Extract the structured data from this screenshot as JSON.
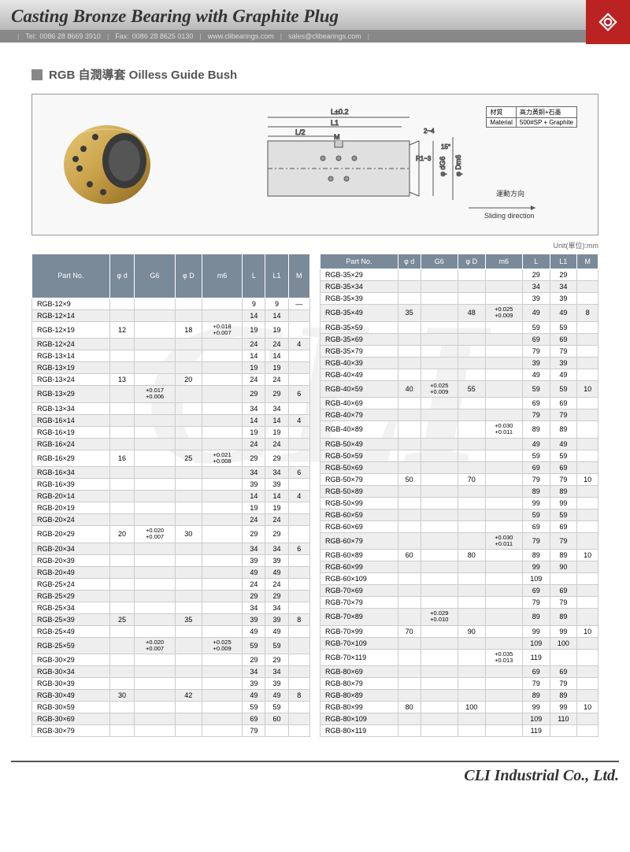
{
  "header": {
    "title": "Casting Bronze Bearing with Graphite Plug",
    "tel_label": "Tel:",
    "tel": "0086 28 8669 3910",
    "fax_label": "Fax:",
    "fax": "0086 28 8625 0130",
    "web": "www.clibearings.com",
    "email": "sales@clibearings.com"
  },
  "section_title": "RGB 自潤導套 Oilless Guide Bush",
  "material": {
    "label": "材質",
    "value_cn": "高力黃銅+石墨",
    "label_en": "Material",
    "value_en": "500#SP + Graphite"
  },
  "diagram_labels": {
    "L": "L±0.2",
    "L1": "L1",
    "Lhalf": "L/2",
    "M": "M",
    "chamfer": "2~4",
    "angle": "15°",
    "radius": "R1~3",
    "dg6": "φ dG6",
    "dm6": "φ Dm6",
    "dir_cn": "運動方向",
    "dir_en": "Sliding direction"
  },
  "unit_label": "Unit(單位):mm",
  "columns": [
    "Part No.",
    "φ d",
    "G6",
    "φ D",
    "m6",
    "L",
    "L1",
    "M"
  ],
  "left_rows": [
    {
      "pn": "RGB-12×9",
      "d": "",
      "g6": "",
      "D": "",
      "m6": "",
      "L": "9",
      "L1": "9",
      "M": "—"
    },
    {
      "pn": "RGB-12×14",
      "d": "",
      "g6": "",
      "D": "",
      "m6": "",
      "L": "14",
      "L1": "14",
      "M": ""
    },
    {
      "pn": "RGB-12×19",
      "d": "12",
      "g6": "",
      "D": "18",
      "m6": "+0.018\n+0.007",
      "L": "19",
      "L1": "19",
      "M": ""
    },
    {
      "pn": "RGB-12×24",
      "d": "",
      "g6": "",
      "D": "",
      "m6": "",
      "L": "24",
      "L1": "24",
      "M": "4"
    },
    {
      "pn": "RGB-13×14",
      "d": "",
      "g6": "",
      "D": "",
      "m6": "",
      "L": "14",
      "L1": "14",
      "M": ""
    },
    {
      "pn": "RGB-13×19",
      "d": "",
      "g6": "",
      "D": "",
      "m6": "",
      "L": "19",
      "L1": "19",
      "M": ""
    },
    {
      "pn": "RGB-13×24",
      "d": "13",
      "g6": "",
      "D": "20",
      "m6": "",
      "L": "24",
      "L1": "24",
      "M": ""
    },
    {
      "pn": "RGB-13×29",
      "d": "",
      "g6": "+0.017\n+0.006",
      "D": "",
      "m6": "",
      "L": "29",
      "L1": "29",
      "M": "6"
    },
    {
      "pn": "RGB-13×34",
      "d": "",
      "g6": "",
      "D": "",
      "m6": "",
      "L": "34",
      "L1": "34",
      "M": ""
    },
    {
      "pn": "RGB-16×14",
      "d": "",
      "g6": "",
      "D": "",
      "m6": "",
      "L": "14",
      "L1": "14",
      "M": "4"
    },
    {
      "pn": "RGB-16×19",
      "d": "",
      "g6": "",
      "D": "",
      "m6": "",
      "L": "19",
      "L1": "19",
      "M": ""
    },
    {
      "pn": "RGB-16×24",
      "d": "",
      "g6": "",
      "D": "",
      "m6": "",
      "L": "24",
      "L1": "24",
      "M": ""
    },
    {
      "pn": "RGB-16×29",
      "d": "16",
      "g6": "",
      "D": "25",
      "m6": "+0.021\n+0.008",
      "L": "29",
      "L1": "29",
      "M": ""
    },
    {
      "pn": "RGB-16×34",
      "d": "",
      "g6": "",
      "D": "",
      "m6": "",
      "L": "34",
      "L1": "34",
      "M": "6"
    },
    {
      "pn": "RGB-16×39",
      "d": "",
      "g6": "",
      "D": "",
      "m6": "",
      "L": "39",
      "L1": "39",
      "M": ""
    },
    {
      "pn": "RGB-20×14",
      "d": "",
      "g6": "",
      "D": "",
      "m6": "",
      "L": "14",
      "L1": "14",
      "M": "4"
    },
    {
      "pn": "RGB-20×19",
      "d": "",
      "g6": "",
      "D": "",
      "m6": "",
      "L": "19",
      "L1": "19",
      "M": ""
    },
    {
      "pn": "RGB-20×24",
      "d": "",
      "g6": "",
      "D": "",
      "m6": "",
      "L": "24",
      "L1": "24",
      "M": ""
    },
    {
      "pn": "RGB-20×29",
      "d": "20",
      "g6": "+0.020\n+0.007",
      "D": "30",
      "m6": "",
      "L": "29",
      "L1": "29",
      "M": ""
    },
    {
      "pn": "RGB-20×34",
      "d": "",
      "g6": "",
      "D": "",
      "m6": "",
      "L": "34",
      "L1": "34",
      "M": "6"
    },
    {
      "pn": "RGB-20×39",
      "d": "",
      "g6": "",
      "D": "",
      "m6": "",
      "L": "39",
      "L1": "39",
      "M": ""
    },
    {
      "pn": "RGB-20×49",
      "d": "",
      "g6": "",
      "D": "",
      "m6": "",
      "L": "49",
      "L1": "49",
      "M": ""
    },
    {
      "pn": "RGB-25×24",
      "d": "",
      "g6": "",
      "D": "",
      "m6": "",
      "L": "24",
      "L1": "24",
      "M": ""
    },
    {
      "pn": "RGB-25×29",
      "d": "",
      "g6": "",
      "D": "",
      "m6": "",
      "L": "29",
      "L1": "29",
      "M": ""
    },
    {
      "pn": "RGB-25×34",
      "d": "",
      "g6": "",
      "D": "",
      "m6": "",
      "L": "34",
      "L1": "34",
      "M": ""
    },
    {
      "pn": "RGB-25×39",
      "d": "25",
      "g6": "",
      "D": "35",
      "m6": "",
      "L": "39",
      "L1": "39",
      "M": "8"
    },
    {
      "pn": "RGB-25×49",
      "d": "",
      "g6": "",
      "D": "",
      "m6": "",
      "L": "49",
      "L1": "49",
      "M": ""
    },
    {
      "pn": "RGB-25×59",
      "d": "",
      "g6": "+0.020\n+0.007",
      "D": "",
      "m6": "+0.025\n+0.009",
      "L": "59",
      "L1": "59",
      "M": ""
    },
    {
      "pn": "RGB-30×29",
      "d": "",
      "g6": "",
      "D": "",
      "m6": "",
      "L": "29",
      "L1": "29",
      "M": ""
    },
    {
      "pn": "RGB-30×34",
      "d": "",
      "g6": "",
      "D": "",
      "m6": "",
      "L": "34",
      "L1": "34",
      "M": ""
    },
    {
      "pn": "RGB-30×39",
      "d": "",
      "g6": "",
      "D": "",
      "m6": "",
      "L": "39",
      "L1": "39",
      "M": ""
    },
    {
      "pn": "RGB-30×49",
      "d": "30",
      "g6": "",
      "D": "42",
      "m6": "",
      "L": "49",
      "L1": "49",
      "M": "8"
    },
    {
      "pn": "RGB-30×59",
      "d": "",
      "g6": "",
      "D": "",
      "m6": "",
      "L": "59",
      "L1": "59",
      "M": ""
    },
    {
      "pn": "RGB-30×69",
      "d": "",
      "g6": "",
      "D": "",
      "m6": "",
      "L": "69",
      "L1": "60",
      "M": ""
    },
    {
      "pn": "RGB-30×79",
      "d": "",
      "g6": "",
      "D": "",
      "m6": "",
      "L": "79",
      "L1": "",
      "M": ""
    }
  ],
  "right_rows": [
    {
      "pn": "RGB-35×29",
      "d": "",
      "g6": "",
      "D": "",
      "m6": "",
      "L": "29",
      "L1": "29",
      "M": ""
    },
    {
      "pn": "RGB-35×34",
      "d": "",
      "g6": "",
      "D": "",
      "m6": "",
      "L": "34",
      "L1": "34",
      "M": ""
    },
    {
      "pn": "RGB-35×39",
      "d": "",
      "g6": "",
      "D": "",
      "m6": "",
      "L": "39",
      "L1": "39",
      "M": ""
    },
    {
      "pn": "RGB-35×49",
      "d": "35",
      "g6": "",
      "D": "48",
      "m6": "+0.025\n+0.009",
      "L": "49",
      "L1": "49",
      "M": "8"
    },
    {
      "pn": "RGB-35×59",
      "d": "",
      "g6": "",
      "D": "",
      "m6": "",
      "L": "59",
      "L1": "59",
      "M": ""
    },
    {
      "pn": "RGB-35×69",
      "d": "",
      "g6": "",
      "D": "",
      "m6": "",
      "L": "69",
      "L1": "69",
      "M": ""
    },
    {
      "pn": "RGB-35×79",
      "d": "",
      "g6": "",
      "D": "",
      "m6": "",
      "L": "79",
      "L1": "79",
      "M": ""
    },
    {
      "pn": "RGB-40×39",
      "d": "",
      "g6": "",
      "D": "",
      "m6": "",
      "L": "39",
      "L1": "39",
      "M": ""
    },
    {
      "pn": "RGB-40×49",
      "d": "",
      "g6": "",
      "D": "",
      "m6": "",
      "L": "49",
      "L1": "49",
      "M": ""
    },
    {
      "pn": "RGB-40×59",
      "d": "40",
      "g6": "+0.025\n+0.009",
      "D": "55",
      "m6": "",
      "L": "59",
      "L1": "59",
      "M": "10"
    },
    {
      "pn": "RGB-40×69",
      "d": "",
      "g6": "",
      "D": "",
      "m6": "",
      "L": "69",
      "L1": "69",
      "M": ""
    },
    {
      "pn": "RGB-40×79",
      "d": "",
      "g6": "",
      "D": "",
      "m6": "",
      "L": "79",
      "L1": "79",
      "M": ""
    },
    {
      "pn": "RGB-40×89",
      "d": "",
      "g6": "",
      "D": "",
      "m6": "+0.030\n+0.011",
      "L": "89",
      "L1": "89",
      "M": ""
    },
    {
      "pn": "RGB-50×49",
      "d": "",
      "g6": "",
      "D": "",
      "m6": "",
      "L": "49",
      "L1": "49",
      "M": ""
    },
    {
      "pn": "RGB-50×59",
      "d": "",
      "g6": "",
      "D": "",
      "m6": "",
      "L": "59",
      "L1": "59",
      "M": ""
    },
    {
      "pn": "RGB-50×69",
      "d": "",
      "g6": "",
      "D": "",
      "m6": "",
      "L": "69",
      "L1": "69",
      "M": ""
    },
    {
      "pn": "RGB-50×79",
      "d": "50",
      "g6": "",
      "D": "70",
      "m6": "",
      "L": "79",
      "L1": "79",
      "M": "10"
    },
    {
      "pn": "RGB-50×89",
      "d": "",
      "g6": "",
      "D": "",
      "m6": "",
      "L": "89",
      "L1": "89",
      "M": ""
    },
    {
      "pn": "RGB-50×99",
      "d": "",
      "g6": "",
      "D": "",
      "m6": "",
      "L": "99",
      "L1": "99",
      "M": ""
    },
    {
      "pn": "RGB-60×59",
      "d": "",
      "g6": "",
      "D": "",
      "m6": "",
      "L": "59",
      "L1": "59",
      "M": ""
    },
    {
      "pn": "RGB-60×69",
      "d": "",
      "g6": "",
      "D": "",
      "m6": "",
      "L": "69",
      "L1": "69",
      "M": ""
    },
    {
      "pn": "RGB-60×79",
      "d": "",
      "g6": "",
      "D": "",
      "m6": "+0.030\n+0.011",
      "L": "79",
      "L1": "79",
      "M": ""
    },
    {
      "pn": "RGB-60×89",
      "d": "60",
      "g6": "",
      "D": "80",
      "m6": "",
      "L": "89",
      "L1": "89",
      "M": "10"
    },
    {
      "pn": "RGB-60×99",
      "d": "",
      "g6": "",
      "D": "",
      "m6": "",
      "L": "99",
      "L1": "90",
      "M": ""
    },
    {
      "pn": "RGB-60×109",
      "d": "",
      "g6": "",
      "D": "",
      "m6": "",
      "L": "109",
      "L1": "",
      "M": ""
    },
    {
      "pn": "RGB-70×69",
      "d": "",
      "g6": "",
      "D": "",
      "m6": "",
      "L": "69",
      "L1": "69",
      "M": ""
    },
    {
      "pn": "RGB-70×79",
      "d": "",
      "g6": "",
      "D": "",
      "m6": "",
      "L": "79",
      "L1": "79",
      "M": ""
    },
    {
      "pn": "RGB-70×89",
      "d": "",
      "g6": "+0.029\n+0.010",
      "D": "",
      "m6": "",
      "L": "89",
      "L1": "89",
      "M": ""
    },
    {
      "pn": "RGB-70×99",
      "d": "70",
      "g6": "",
      "D": "90",
      "m6": "",
      "L": "99",
      "L1": "99",
      "M": "10"
    },
    {
      "pn": "RGB-70×109",
      "d": "",
      "g6": "",
      "D": "",
      "m6": "",
      "L": "109",
      "L1": "100",
      "M": ""
    },
    {
      "pn": "RGB-70×119",
      "d": "",
      "g6": "",
      "D": "",
      "m6": "+0.035\n+0.013",
      "L": "119",
      "L1": "",
      "M": ""
    },
    {
      "pn": "RGB-80×69",
      "d": "",
      "g6": "",
      "D": "",
      "m6": "",
      "L": "69",
      "L1": "69",
      "M": ""
    },
    {
      "pn": "RGB-80×79",
      "d": "",
      "g6": "",
      "D": "",
      "m6": "",
      "L": "79",
      "L1": "79",
      "M": ""
    },
    {
      "pn": "RGB-80×89",
      "d": "",
      "g6": "",
      "D": "",
      "m6": "",
      "L": "89",
      "L1": "89",
      "M": ""
    },
    {
      "pn": "RGB-80×99",
      "d": "80",
      "g6": "",
      "D": "100",
      "m6": "",
      "L": "99",
      "L1": "99",
      "M": "10"
    },
    {
      "pn": "RGB-80×109",
      "d": "",
      "g6": "",
      "D": "",
      "m6": "",
      "L": "109",
      "L1": "110",
      "M": ""
    },
    {
      "pn": "RGB-80×119",
      "d": "",
      "g6": "",
      "D": "",
      "m6": "",
      "L": "119",
      "L1": "",
      "M": ""
    }
  ],
  "footer": "CLI Industrial Co., Ltd.",
  "colors": {
    "header_bar": "#888",
    "th_bg": "#7a8a99",
    "th_fg": "#ffffff",
    "row_odd": "#eeeeee",
    "border": "#cccccc",
    "logo": "#b22222",
    "bronze1": "#c8a048",
    "bronze2": "#9a7530",
    "graphite": "#4a4a4a"
  }
}
